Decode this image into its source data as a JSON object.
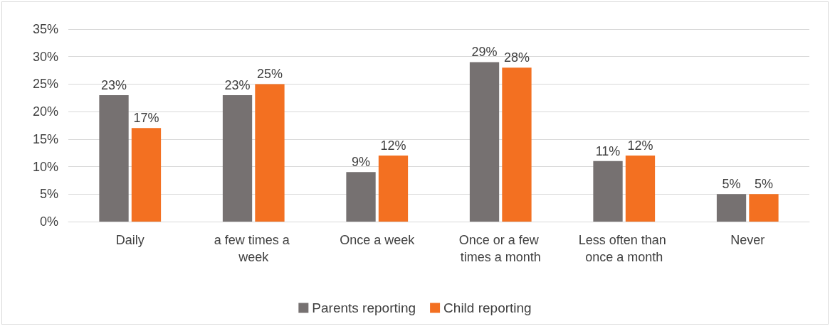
{
  "chart_data": {
    "type": "bar",
    "categories": [
      "Daily",
      "a few times a week",
      "Once a week",
      "Once or a few times a month",
      "Less often than once a month",
      "Never"
    ],
    "series": [
      {
        "name": "Parents reporting",
        "color": "#767171",
        "values": [
          23,
          23,
          9,
          29,
          11,
          5
        ],
        "value_labels": [
          "23%",
          "23%",
          "9%",
          "29%",
          "11%",
          "5%"
        ]
      },
      {
        "name": "Child reporting",
        "color": "#f37021",
        "values": [
          17,
          25,
          12,
          28,
          12,
          5
        ],
        "value_labels": [
          "17%",
          "25%",
          "12%",
          "28%",
          "12%",
          "5%"
        ]
      }
    ],
    "ylim": [
      0,
      35
    ],
    "yticks": [
      {
        "value": 0,
        "label": "0%"
      },
      {
        "value": 5,
        "label": "5%"
      },
      {
        "value": 10,
        "label": "10%"
      },
      {
        "value": 15,
        "label": "15%"
      },
      {
        "value": 20,
        "label": "20%"
      },
      {
        "value": 25,
        "label": "25%"
      },
      {
        "value": 30,
        "label": "30%"
      },
      {
        "value": 35,
        "label": "35%"
      }
    ],
    "grid": "y",
    "legend": "bottom"
  }
}
